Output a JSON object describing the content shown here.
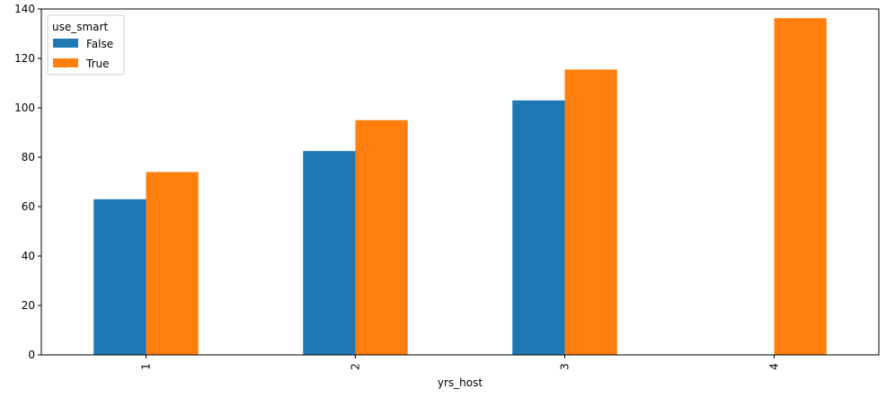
{
  "chart_data": {
    "type": "bar",
    "title": "",
    "xlabel": "yrs_host",
    "ylabel": "",
    "categories": [
      "1",
      "2",
      "3",
      "4"
    ],
    "series": [
      {
        "name": "False",
        "values": [
          63,
          82.5,
          103,
          null
        ],
        "color": "#1f77b4"
      },
      {
        "name": "True",
        "values": [
          74,
          95,
          115.5,
          136.3
        ],
        "color": "#ff7f0e"
      }
    ],
    "ylim": [
      0,
      140
    ],
    "yticks": [
      0,
      20,
      40,
      60,
      80,
      100,
      120,
      140
    ],
    "grid": false,
    "legend": {
      "title": "use_smart",
      "placement": "top-left"
    }
  }
}
